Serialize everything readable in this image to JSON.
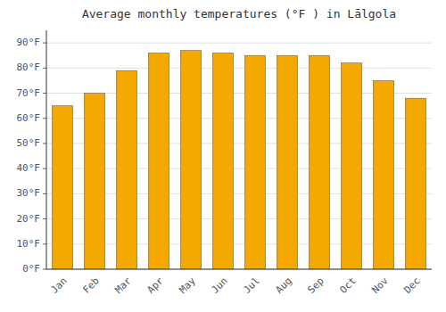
{
  "chart_data": {
    "type": "bar",
    "title": "Average monthly temperatures (°F ) in Lālgola",
    "categories": [
      "Jan",
      "Feb",
      "Mar",
      "Apr",
      "May",
      "Jun",
      "Jul",
      "Aug",
      "Sep",
      "Oct",
      "Nov",
      "Dec"
    ],
    "values": [
      65,
      70,
      79,
      86,
      87,
      86,
      85,
      85,
      85,
      82,
      75,
      68
    ],
    "color": "#F5A800",
    "ylim": [
      0,
      95
    ],
    "yticks": [
      {
        "value": 0,
        "label": "0°F"
      },
      {
        "value": 10,
        "label": "10°F"
      },
      {
        "value": 20,
        "label": "20°F"
      },
      {
        "value": 30,
        "label": "30°F"
      },
      {
        "value": 40,
        "label": "40°F"
      },
      {
        "value": 50,
        "label": "50°F"
      },
      {
        "value": 60,
        "label": "60°F"
      },
      {
        "value": 70,
        "label": "70°F"
      },
      {
        "value": 80,
        "label": "80°F"
      },
      {
        "value": 90,
        "label": "90°F"
      }
    ],
    "grid": true
  }
}
